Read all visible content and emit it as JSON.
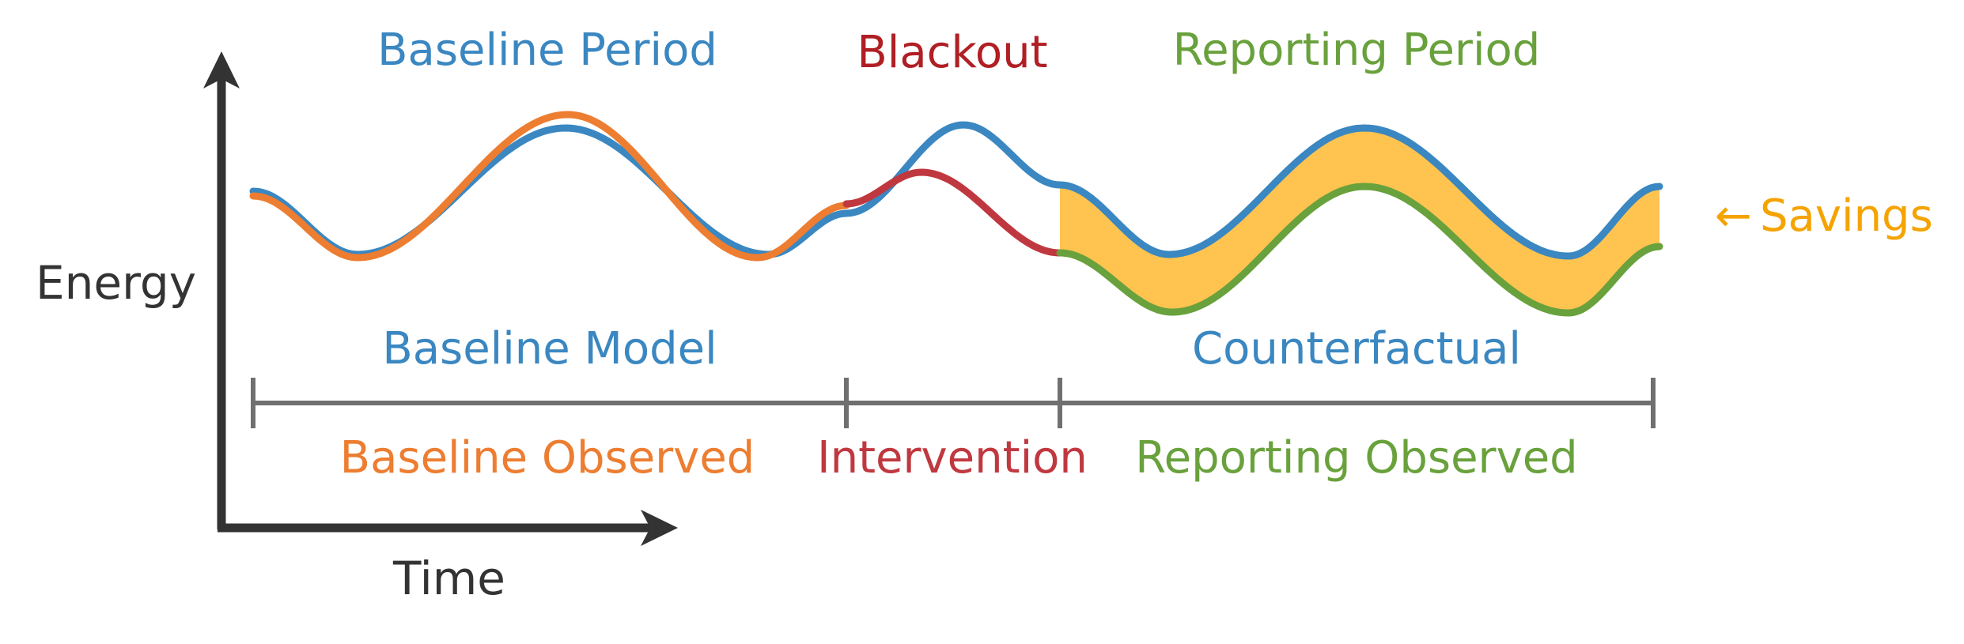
{
  "colors": {
    "baseline": "#3a87c1",
    "observed": "#ed7d31",
    "intervention": "#c0383f",
    "blackout": "#b01f24",
    "reporting": "#69a13c",
    "savings_fill": "#ffc350",
    "savings_text": "#f5a300",
    "axis": "#333333",
    "timeline": "#707070"
  },
  "axes": {
    "y_label": "Energy",
    "x_label": "Time"
  },
  "periods": {
    "baseline": "Baseline Period",
    "blackout": "Blackout",
    "reporting": "Reporting Period"
  },
  "upper_labels": {
    "baseline_model": "Baseline Model",
    "counterfactual": "Counterfactual"
  },
  "lower_labels": {
    "baseline_observed": "Baseline Observed",
    "intervention": "Intervention",
    "reporting_observed": "Reporting Observed"
  },
  "savings": {
    "arrow": "←",
    "label": "Savings"
  }
}
